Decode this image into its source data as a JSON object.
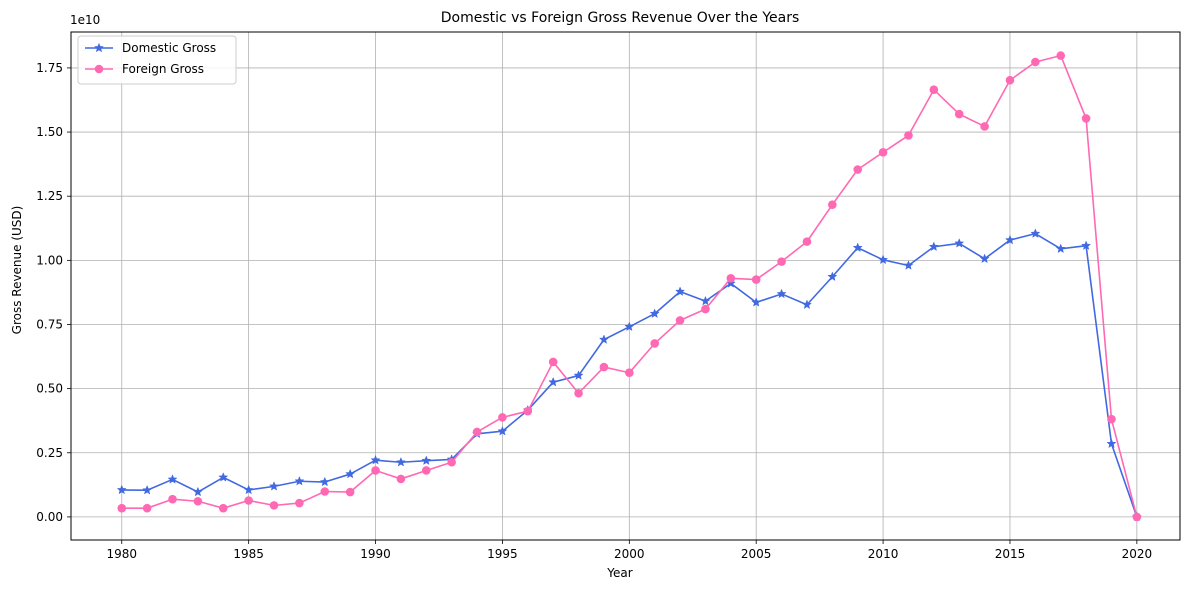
{
  "chart_data": {
    "type": "line",
    "title": "Domestic vs Foreign Gross Revenue Over the Years",
    "xlabel": "Year",
    "ylabel": "Gross Revenue (USD)",
    "y_offset_label": "1e10",
    "xlim": [
      1978,
      2021.7
    ],
    "ylim": [
      -0.09,
      1.89
    ],
    "x_ticks": [
      1980,
      1985,
      1990,
      1995,
      2000,
      2005,
      2010,
      2015,
      2020
    ],
    "y_ticks": [
      0.0,
      0.25,
      0.5,
      0.75,
      1.0,
      1.25,
      1.5,
      1.75
    ],
    "y_tick_labels": [
      "0.00",
      "0.25",
      "0.50",
      "0.75",
      "1.00",
      "1.25",
      "1.50",
      "1.75"
    ],
    "grid": true,
    "legend_position": "top-left",
    "x": [
      1980,
      1981,
      1982,
      1983,
      1984,
      1985,
      1986,
      1987,
      1988,
      1989,
      1990,
      1991,
      1992,
      1993,
      1994,
      1995,
      1996,
      1997,
      1998,
      1999,
      2000,
      2001,
      2002,
      2003,
      2004,
      2005,
      2006,
      2007,
      2008,
      2009,
      2010,
      2011,
      2012,
      2013,
      2014,
      2015,
      2016,
      2017,
      2018,
      2019,
      2020
    ],
    "series": [
      {
        "name": "Domestic Gross",
        "color": "#4169e1",
        "marker": "star",
        "values": [
          0.105,
          0.104,
          0.146,
          0.097,
          0.154,
          0.105,
          0.119,
          0.139,
          0.136,
          0.167,
          0.221,
          0.213,
          0.219,
          0.224,
          0.324,
          0.334,
          0.416,
          0.525,
          0.551,
          0.691,
          0.741,
          0.792,
          0.878,
          0.841,
          0.91,
          0.836,
          0.869,
          0.827,
          0.936,
          1.049,
          1.002,
          0.98,
          1.053,
          1.066,
          1.006,
          1.079,
          1.104,
          1.045,
          1.057,
          0.285,
          0.0
        ]
      },
      {
        "name": "Foreign Gross",
        "color": "#ff69b4",
        "marker": "circle",
        "values": [
          0.034,
          0.034,
          0.069,
          0.061,
          0.034,
          0.064,
          0.045,
          0.054,
          0.099,
          0.097,
          0.181,
          0.148,
          0.181,
          0.213,
          0.331,
          0.388,
          0.412,
          0.604,
          0.482,
          0.584,
          0.562,
          0.676,
          0.766,
          0.81,
          0.93,
          0.925,
          0.995,
          1.073,
          1.217,
          1.354,
          1.421,
          1.487,
          1.665,
          1.57,
          1.522,
          1.702,
          1.773,
          1.798,
          1.553,
          0.381,
          0.0
        ]
      }
    ]
  }
}
